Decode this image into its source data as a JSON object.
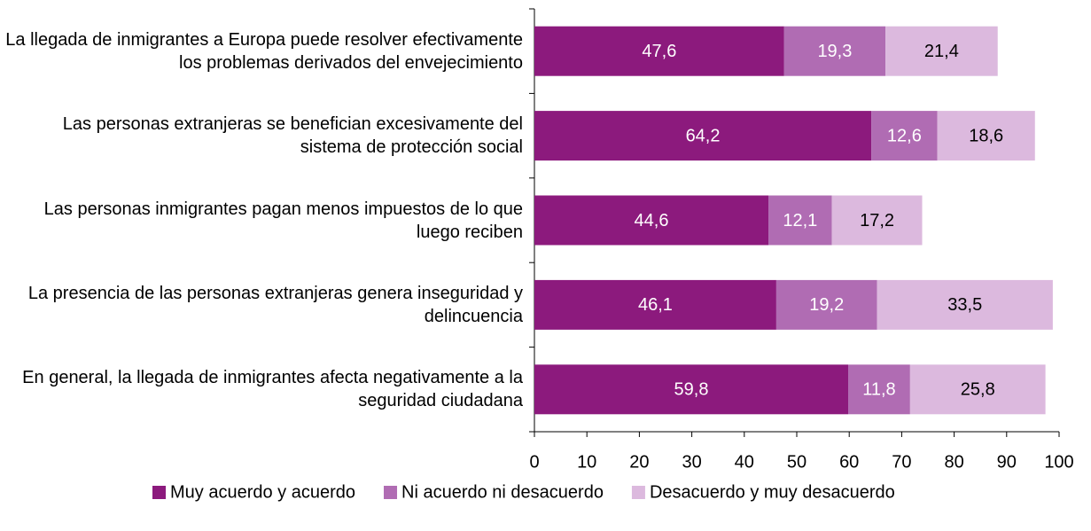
{
  "chart_data": {
    "type": "stacked-bar-horizontal",
    "categories": [
      "La llegada de inmigrantes a Europa puede resolver efectivamente los problemas derivados del envejecimiento",
      "Las personas extranjeras se benefician excesivamente del sistema de protección social",
      "Las personas inmigrantes pagan menos impuestos de lo que luego reciben",
      "La presencia de las personas extranjeras genera inseguridad y delincuencia",
      "En general, la llegada de inmigrantes afecta negativamente a la seguridad ciudadana"
    ],
    "series": [
      {
        "name": "Muy acuerdo y acuerdo",
        "color": "#8c1a7d",
        "label_color": "#ffffff",
        "values": [
          47.6,
          64.2,
          44.6,
          46.1,
          59.8
        ],
        "value_labels": [
          "47,6",
          "64,2",
          "44,6",
          "46,1",
          "59,8"
        ]
      },
      {
        "name": "Ni acuerdo ni desacuerdo",
        "color": "#b06cb3",
        "label_color": "#ffffff",
        "values": [
          19.3,
          12.6,
          12.1,
          19.2,
          11.8
        ],
        "value_labels": [
          "19,3",
          "12,6",
          "12,1",
          "19,2",
          "11,8"
        ]
      },
      {
        "name": "Desacuerdo y muy desacuerdo",
        "color": "#dcb9de",
        "label_color": "#000000",
        "values": [
          21.4,
          18.6,
          17.2,
          33.5,
          25.8
        ],
        "value_labels": [
          "21,4",
          "18,6",
          "17,2",
          "33,5",
          "25,8"
        ]
      }
    ],
    "xlim": [
      0,
      100
    ],
    "xticks": [
      0,
      10,
      20,
      30,
      40,
      50,
      60,
      70,
      80,
      90,
      100
    ]
  }
}
